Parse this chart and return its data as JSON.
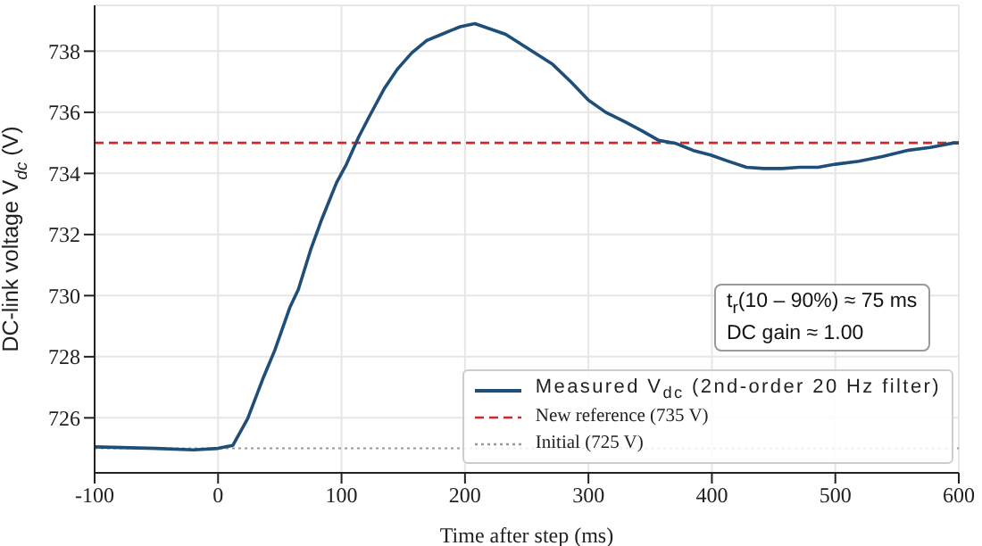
{
  "chart_data": {
    "type": "line",
    "xlabel": "Time after step (ms)",
    "ylabel": "DC-link voltage V$_{dc}$ (V)",
    "xlim": [
      -100,
      600
    ],
    "xticks": [
      -100,
      0,
      100,
      200,
      300,
      400,
      500,
      600
    ],
    "ylim": [
      724.2,
      739.5
    ],
    "yticks": [
      726,
      728,
      730,
      732,
      734,
      736,
      738
    ],
    "grid": true,
    "legend": "bottom right",
    "marker": "none",
    "line_style": "solid",
    "series": [
      {
        "name": "Measured V$_{dc}$ (2nd-order 20 Hz filter)",
        "color": "#1f4e79",
        "x": [
          -100,
          -50,
          -20,
          0,
          12,
          24,
          36,
          46,
          58,
          65,
          75,
          84,
          96,
          104,
          114,
          123,
          135,
          145,
          157,
          169,
          181,
          196,
          208,
          233,
          252,
          271,
          286,
          300,
          314,
          329,
          343,
          357,
          371,
          385,
          399,
          413,
          428,
          442,
          457,
          471,
          486,
          500,
          519,
          538,
          558,
          577,
          596,
          600
        ],
        "values": [
          725.05,
          725.0,
          724.95,
          725.0,
          725.1,
          725.98,
          727.25,
          728.22,
          729.6,
          730.2,
          731.5,
          732.5,
          733.7,
          734.3,
          735.2,
          735.9,
          736.8,
          737.4,
          737.95,
          738.35,
          738.55,
          738.8,
          738.9,
          738.55,
          738.06,
          737.57,
          736.99,
          736.4,
          736.0,
          735.7,
          735.4,
          735.08,
          734.98,
          734.75,
          734.6,
          734.4,
          734.2,
          734.16,
          734.16,
          734.2,
          734.2,
          734.3,
          734.4,
          734.55,
          734.75,
          734.85,
          735.0,
          735.0
        ]
      }
    ],
    "ref_lines": [
      {
        "axis": "y",
        "value": 735,
        "label": "New reference (735 V)",
        "color": "#d62728",
        "line_style": "dashed"
      },
      {
        "axis": "y",
        "value": 725,
        "label": "Initial (725 V)",
        "color": "#999999",
        "line_style": "dotted"
      }
    ],
    "annotations": [
      "t$_{r}$(10 – 90%) ≈ 75 ms",
      "DC gain ≈ 1.00"
    ]
  }
}
